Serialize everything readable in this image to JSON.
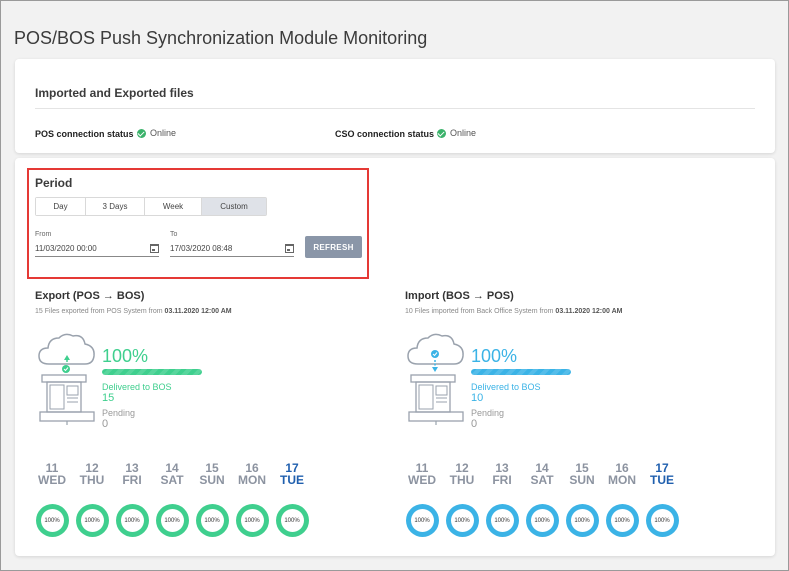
{
  "page_title": "POS/BOS Push Synchronization Module Monitoring",
  "files_card": {
    "title": "Imported and Exported files",
    "pos_label": "POS connection status",
    "pos_status": "Online",
    "cso_label": "CSO connection status",
    "cso_status": "Online"
  },
  "period": {
    "title": "Period",
    "tabs": [
      "Day",
      "3 Days",
      "Week",
      "Custom"
    ],
    "active_tab": "Custom",
    "from_label": "From",
    "from_value": "11/03/2020 00:00",
    "to_label": "To",
    "to_value": "17/03/2020 08:48",
    "refresh_label": "REFRESH"
  },
  "export": {
    "title": "Export (POS → BOS)",
    "subtitle_prefix": "15 Files exported from POS System from ",
    "subtitle_date": "03.11.2020 12:00 AM",
    "percent": "100%",
    "progress": 1.0,
    "delivered_label": "Delivered to BOS",
    "delivered_value": "15",
    "pending_label": "Pending",
    "pending_value": "0",
    "color": "#3fcf8e"
  },
  "import": {
    "title": "Import (BOS → POS)",
    "subtitle_prefix": "10 Files imported from Back Office System from ",
    "subtitle_date": "03.11.2020 12:00 AM",
    "percent": "100%",
    "progress": 1.0,
    "delivered_label": "Delivered to BOS",
    "delivered_value": "10",
    "pending_label": "Pending",
    "pending_value": "0",
    "color": "#3bb3e6"
  },
  "days": [
    {
      "num": "11",
      "name": "WED",
      "pct": "100%"
    },
    {
      "num": "12",
      "name": "THU",
      "pct": "100%"
    },
    {
      "num": "13",
      "name": "FRI",
      "pct": "100%"
    },
    {
      "num": "14",
      "name": "SAT",
      "pct": "100%"
    },
    {
      "num": "15",
      "name": "SUN",
      "pct": "100%"
    },
    {
      "num": "16",
      "name": "MON",
      "pct": "100%"
    },
    {
      "num": "17",
      "name": "TUE",
      "pct": "100%",
      "today": true
    }
  ]
}
